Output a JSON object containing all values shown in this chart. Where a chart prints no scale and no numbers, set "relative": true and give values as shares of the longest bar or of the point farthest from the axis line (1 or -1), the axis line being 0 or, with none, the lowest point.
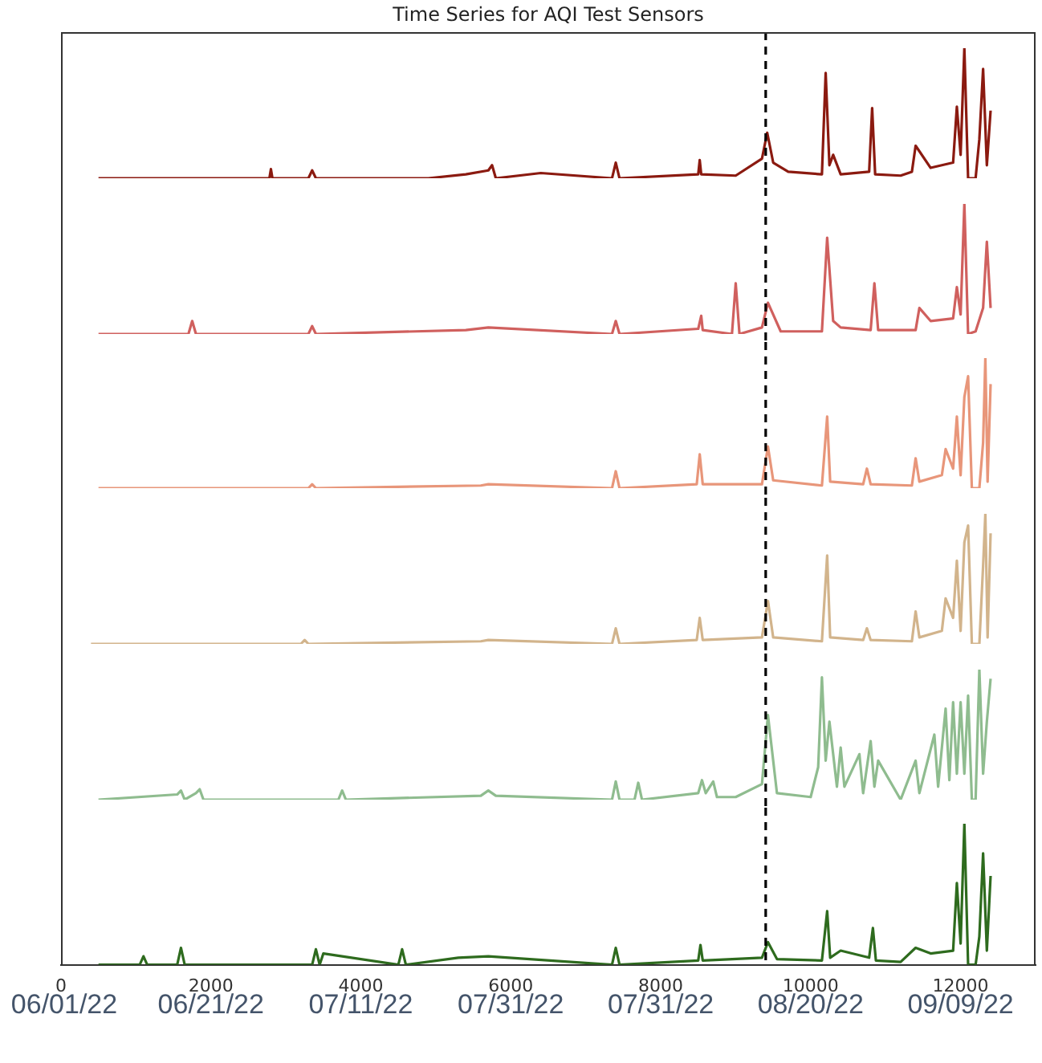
{
  "chart_data": [
    {
      "type": "line",
      "title": "Time Series for AQI Test Sensors",
      "relative": true,
      "xlim": [
        0,
        13000
      ],
      "xticks": [
        0,
        2000,
        4000,
        6000,
        8000,
        10000,
        12000
      ],
      "tick_labels": false,
      "grid": false,
      "legend": false,
      "marker": "none",
      "ref_lines": [
        {
          "axis": "x",
          "value": 9400,
          "line_style": "dashed",
          "color": "#000000"
        }
      ],
      "series": [
        {
          "color": "#8b1a10",
          "x": [
            500,
            2780,
            2800,
            2820,
            3300,
            3350,
            3400,
            4900,
            5400,
            5700,
            5750,
            5800,
            6400,
            7350,
            7400,
            7450,
            8500,
            8520,
            8540,
            9000,
            9350,
            9420,
            9500,
            9700,
            10150,
            10200,
            10250,
            10300,
            10400,
            10780,
            10820,
            10860,
            11200,
            11350,
            11400,
            11600,
            11900,
            11950,
            12000,
            12050,
            12100,
            12200,
            12250,
            12300,
            12350,
            12400
          ],
          "values": [
            0,
            0,
            0.07,
            0,
            0,
            0.06,
            0,
            0,
            0.03,
            0.06,
            0.1,
            0,
            0.04,
            0,
            0.12,
            0,
            0.03,
            0.14,
            0.03,
            0.02,
            0.15,
            0.35,
            0.12,
            0.05,
            0.03,
            0.81,
            0.1,
            0.18,
            0.03,
            0.05,
            0.54,
            0.03,
            0.02,
            0.05,
            0.25,
            0.08,
            0.12,
            0.55,
            0.18,
            1,
            0,
            0,
            0.3,
            0.84,
            0.1,
            0.52
          ]
        }
      ]
    },
    {
      "type": "line",
      "relative": true,
      "xlim": [
        0,
        13000
      ],
      "xticks": [
        0,
        2000,
        4000,
        6000,
        8000,
        10000,
        12000
      ],
      "tick_labels": false,
      "grid": false,
      "legend": false,
      "marker": "none",
      "ref_lines": [
        {
          "axis": "x",
          "value": 9400,
          "line_style": "dashed",
          "color": "#000000"
        }
      ],
      "series": [
        {
          "color": "#d0605e",
          "x": [
            500,
            1700,
            1750,
            1800,
            3300,
            3350,
            3400,
            5400,
            5700,
            7350,
            7400,
            7450,
            8500,
            8540,
            8560,
            8950,
            9000,
            9050,
            9350,
            9430,
            9600,
            10150,
            10220,
            10300,
            10400,
            10800,
            10850,
            10900,
            11400,
            11450,
            11600,
            11900,
            11950,
            12000,
            12050,
            12100,
            12200,
            12300,
            12350,
            12400
          ],
          "values": [
            0,
            0,
            0.1,
            0,
            0,
            0.06,
            0,
            0.03,
            0.05,
            0,
            0.1,
            0,
            0.04,
            0.14,
            0.03,
            0,
            0.39,
            0,
            0.05,
            0.24,
            0.02,
            0.02,
            0.74,
            0.1,
            0.05,
            0.03,
            0.39,
            0.03,
            0.03,
            0.2,
            0.1,
            0.12,
            0.36,
            0.15,
            1,
            0,
            0.02,
            0.2,
            0.71,
            0.2
          ]
        }
      ]
    },
    {
      "type": "line",
      "relative": true,
      "xlim": [
        0,
        13000
      ],
      "xticks": [
        0,
        2000,
        4000,
        6000,
        8000,
        10000,
        12000
      ],
      "tick_labels": false,
      "grid": false,
      "legend": false,
      "marker": "none",
      "ref_lines": [
        {
          "axis": "x",
          "value": 9400,
          "line_style": "dashed",
          "color": "#000000"
        }
      ],
      "series": [
        {
          "color": "#e8967a",
          "x": [
            500,
            3300,
            3350,
            3400,
            5600,
            5700,
            7350,
            7400,
            7450,
            8480,
            8520,
            8560,
            9350,
            9430,
            9500,
            10150,
            10220,
            10260,
            10700,
            10750,
            10800,
            11350,
            11400,
            11450,
            11750,
            11800,
            11900,
            11950,
            12000,
            12050,
            12100,
            12150,
            12250,
            12300,
            12330,
            12360,
            12400
          ],
          "values": [
            0,
            0,
            0.03,
            0,
            0.02,
            0.03,
            0,
            0.13,
            0,
            0.03,
            0.26,
            0.03,
            0.03,
            0.32,
            0.06,
            0.02,
            0.55,
            0.05,
            0.03,
            0.15,
            0.03,
            0.02,
            0.23,
            0.05,
            0.1,
            0.3,
            0.15,
            0.55,
            0.1,
            0.7,
            0.86,
            0,
            0,
            0.35,
            1,
            0.05,
            0.8
          ]
        }
      ]
    },
    {
      "type": "line",
      "relative": true,
      "xlim": [
        0,
        13000
      ],
      "xticks": [
        0,
        2000,
        4000,
        6000,
        8000,
        10000,
        12000
      ],
      "tick_labels": false,
      "grid": false,
      "legend": false,
      "marker": "none",
      "ref_lines": [
        {
          "axis": "x",
          "value": 9400,
          "line_style": "dashed",
          "color": "#000000"
        }
      ],
      "series": [
        {
          "color": "#d2b48c",
          "x": [
            400,
            3200,
            3250,
            3300,
            5600,
            5700,
            7350,
            7400,
            7450,
            8480,
            8520,
            8560,
            9350,
            9430,
            9500,
            10150,
            10220,
            10260,
            10700,
            10750,
            10800,
            11350,
            11400,
            11450,
            11750,
            11800,
            11900,
            11950,
            12000,
            12050,
            12100,
            12150,
            12250,
            12300,
            12330,
            12360,
            12400
          ],
          "values": [
            0,
            0,
            0.03,
            0,
            0.02,
            0.03,
            0,
            0.12,
            0,
            0.03,
            0.2,
            0.03,
            0.05,
            0.33,
            0.05,
            0.02,
            0.68,
            0.05,
            0.03,
            0.12,
            0.03,
            0.02,
            0.25,
            0.05,
            0.1,
            0.35,
            0.2,
            0.64,
            0.1,
            0.78,
            0.91,
            0,
            0,
            0.6,
            1,
            0.05,
            0.85
          ]
        }
      ]
    },
    {
      "type": "line",
      "relative": true,
      "xlim": [
        0,
        13000
      ],
      "xticks": [
        0,
        2000,
        4000,
        6000,
        8000,
        10000,
        12000
      ],
      "tick_labels": false,
      "grid": false,
      "legend": false,
      "marker": "none",
      "ref_lines": [
        {
          "axis": "x",
          "value": 9400,
          "line_style": "dashed",
          "color": "#000000"
        }
      ],
      "series": [
        {
          "color": "#8fbc8f",
          "x": [
            500,
            1550,
            1600,
            1650,
            1800,
            1850,
            1900,
            3700,
            3750,
            3800,
            5600,
            5700,
            5800,
            7350,
            7400,
            7450,
            7650,
            7700,
            7750,
            8500,
            8550,
            8600,
            8700,
            8750,
            9000,
            9350,
            9430,
            9550,
            10000,
            10100,
            10150,
            10200,
            10250,
            10350,
            10400,
            10450,
            10650,
            10700,
            10800,
            10850,
            10900,
            11200,
            11400,
            11450,
            11650,
            11700,
            11800,
            11850,
            11900,
            11950,
            12000,
            12050,
            12100,
            12150,
            12200,
            12250,
            12300,
            12350,
            12400
          ],
          "values": [
            0,
            0.04,
            0.07,
            0,
            0.05,
            0.08,
            0,
            0,
            0.07,
            0,
            0.03,
            0.07,
            0.03,
            0,
            0.14,
            0,
            0,
            0.13,
            0,
            0.05,
            0.15,
            0.05,
            0.14,
            0.02,
            0.02,
            0.12,
            0.65,
            0.05,
            0.02,
            0.25,
            0.94,
            0.3,
            0.6,
            0.1,
            0.4,
            0.1,
            0.35,
            0.05,
            0.45,
            0.1,
            0.3,
            0,
            0.3,
            0.05,
            0.5,
            0.1,
            0.7,
            0.15,
            0.75,
            0.2,
            0.75,
            0.2,
            0.8,
            0,
            0,
            1,
            0.2,
            0.6,
            0.93
          ]
        }
      ]
    },
    {
      "type": "line",
      "relative": true,
      "xlim": [
        0,
        13000
      ],
      "xticks": [
        0,
        2000,
        4000,
        6000,
        8000,
        10000,
        12000
      ],
      "tick_labels": "x",
      "grid": false,
      "legend": false,
      "marker": "none",
      "ref_lines": [
        {
          "axis": "x",
          "value": 9400,
          "line_style": "dashed",
          "color": "#000000"
        }
      ],
      "annotations": [
        "06/01/22",
        "06/21/22",
        "07/11/22",
        "07/31/22",
        "07/31/22",
        "08/20/22",
        "09/09/22"
      ],
      "series": [
        {
          "color": "#2e6b1e",
          "x": [
            500,
            1050,
            1100,
            1150,
            1550,
            1600,
            1650,
            3350,
            3400,
            3450,
            3500,
            4500,
            4550,
            4600,
            5300,
            5700,
            7350,
            7400,
            7450,
            8500,
            8530,
            8560,
            9350,
            9430,
            9550,
            10150,
            10220,
            10260,
            10400,
            10780,
            10830,
            10870,
            11200,
            11400,
            11600,
            11900,
            11950,
            12000,
            12050,
            12100,
            12200,
            12250,
            12300,
            12350,
            12400
          ],
          "values": [
            0,
            0,
            0.06,
            0,
            0,
            0.12,
            0,
            0,
            0.11,
            0,
            0.08,
            0,
            0.11,
            0,
            0.05,
            0.06,
            0,
            0.12,
            0,
            0.03,
            0.14,
            0.03,
            0.05,
            0.16,
            0.04,
            0.03,
            0.38,
            0.05,
            0.1,
            0.05,
            0.26,
            0.03,
            0.02,
            0.12,
            0.08,
            0.1,
            0.58,
            0.15,
            1,
            0,
            0,
            0.2,
            0.79,
            0.1,
            0.63
          ]
        }
      ]
    }
  ]
}
